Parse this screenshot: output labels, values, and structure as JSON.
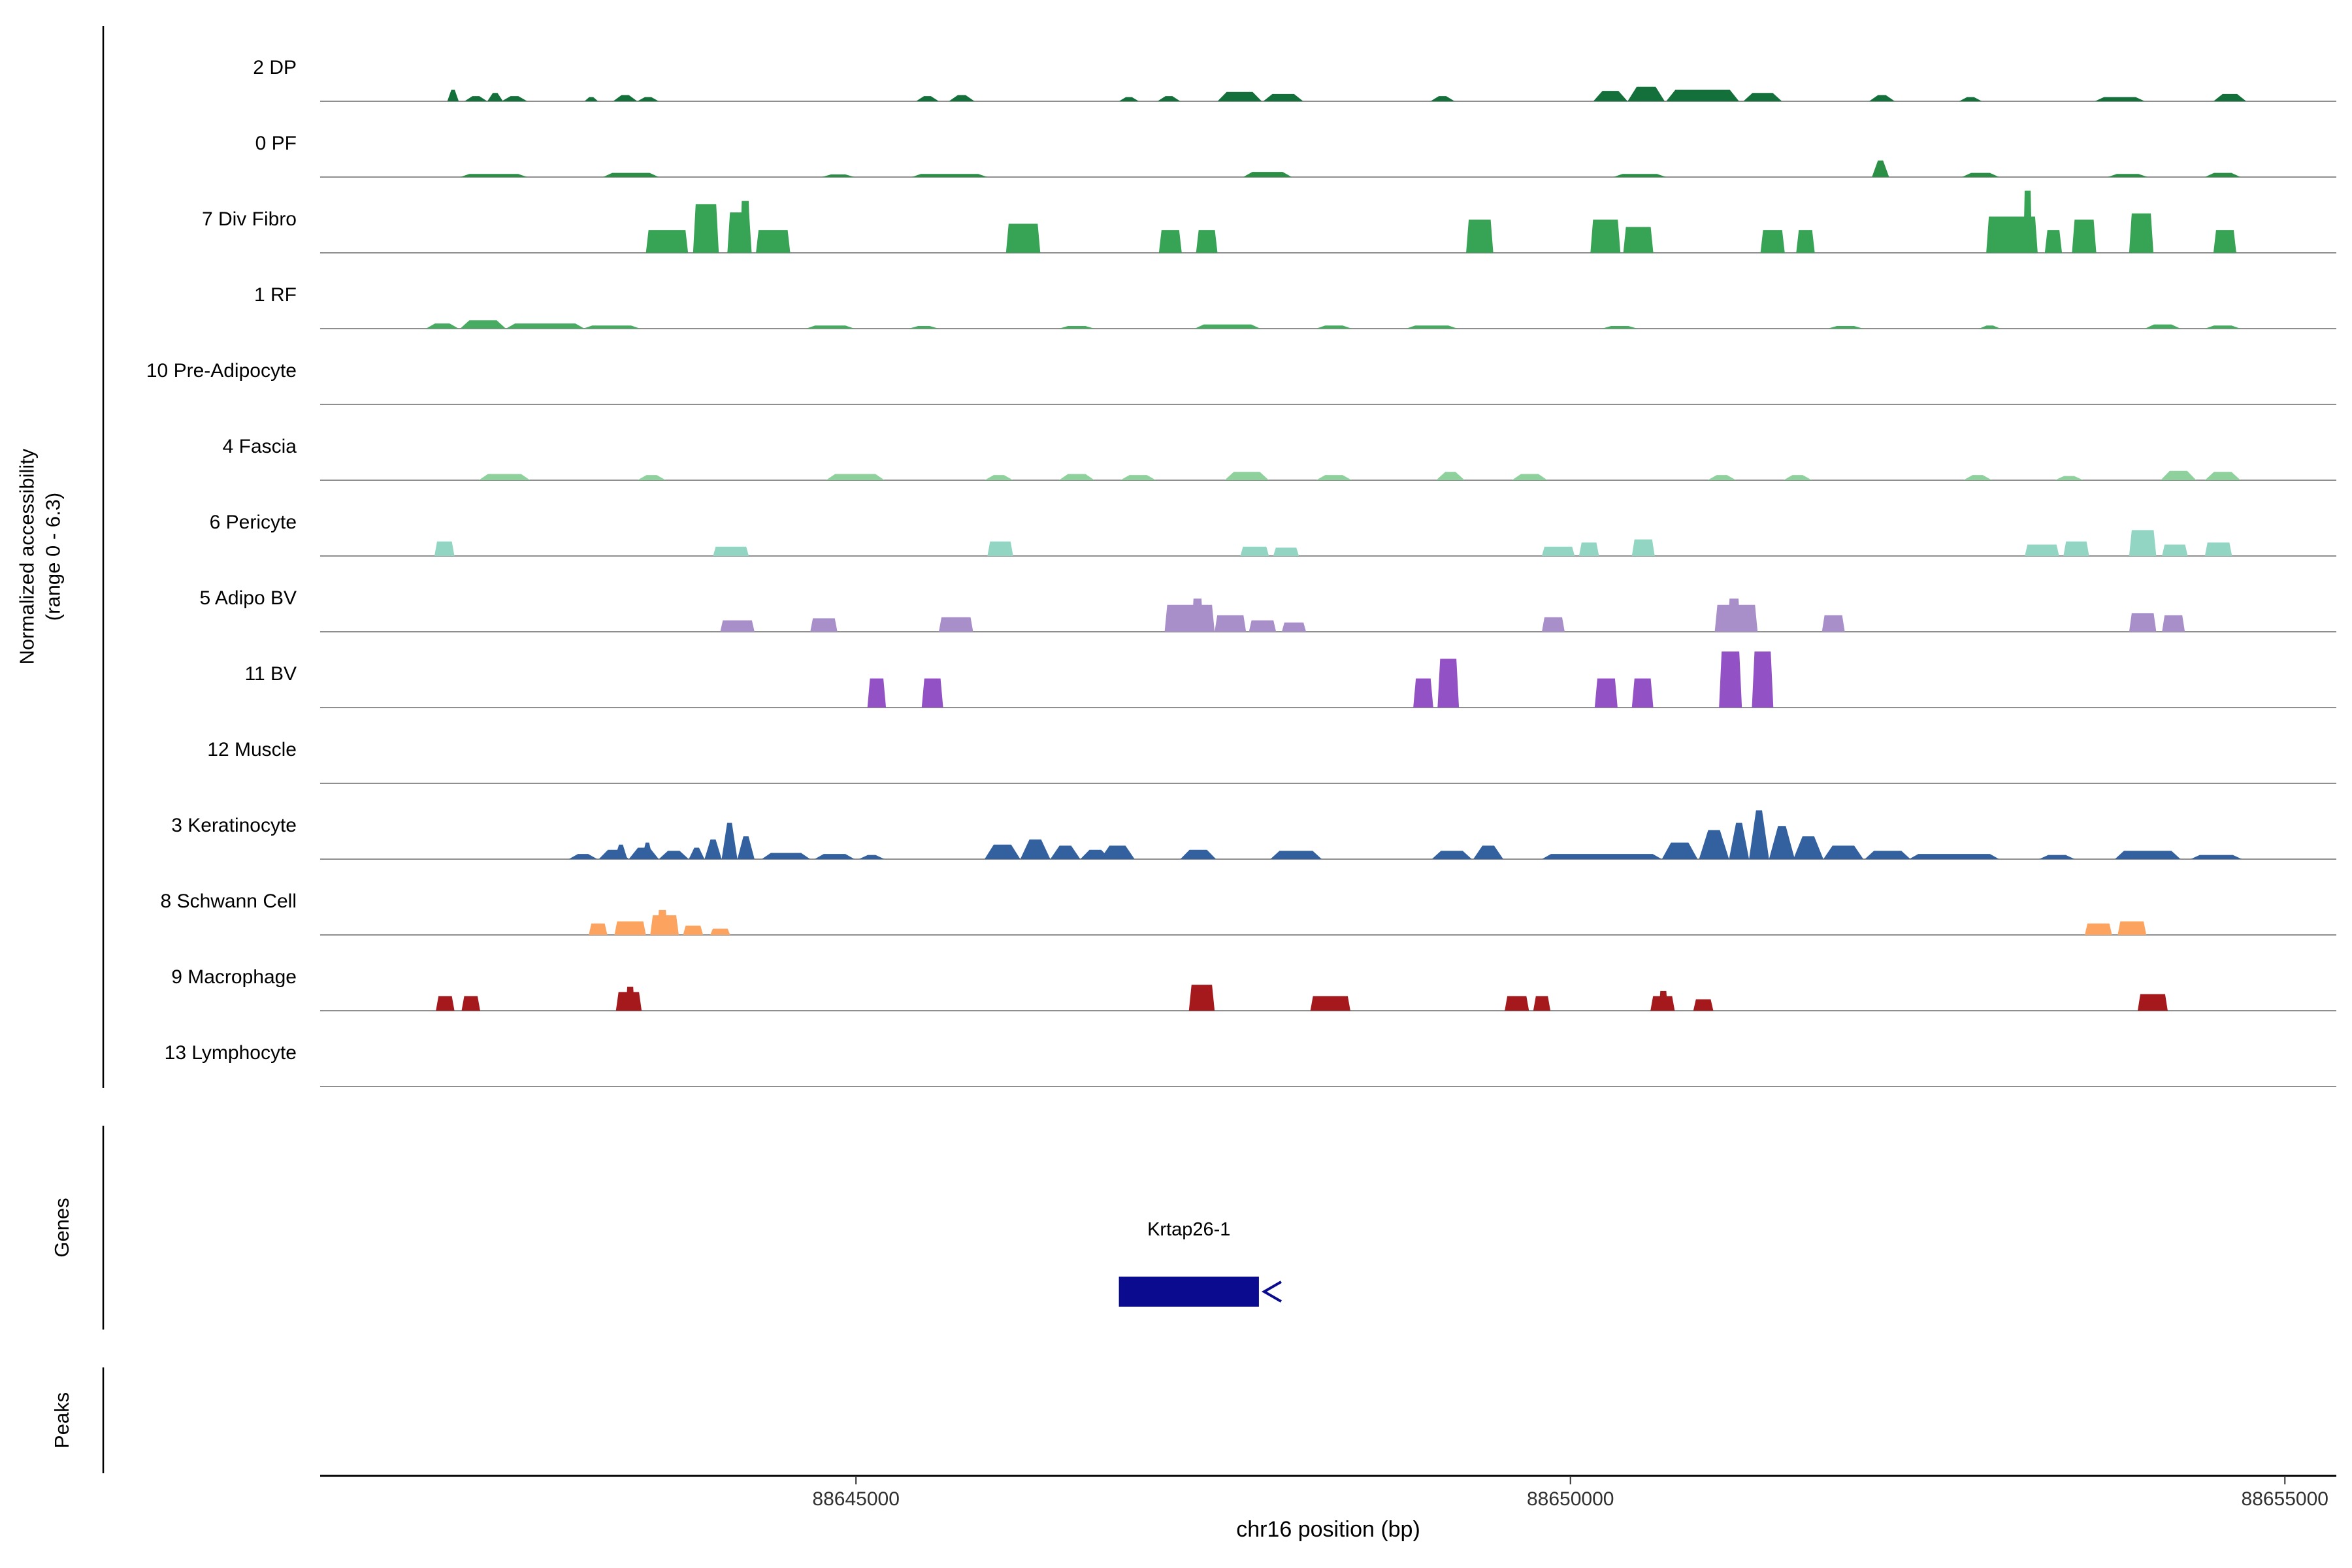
{
  "y_axis": {
    "line1": "Normalized accessibility",
    "line2": "(range 0 - 6.3)"
  },
  "sections": {
    "genes_label": "Genes",
    "peaks_label": "Peaks"
  },
  "x_axis": {
    "title": "chr16 position (bp)",
    "tick_labels": [
      "88645000",
      "88650000",
      "88655000"
    ]
  },
  "chart_data": {
    "type": "area",
    "subtype": "genome-browser-coverage-tracks",
    "chromosome": "chr16",
    "xlabel": "chr16 position (bp)",
    "ylabel": "Normalized accessibility (range 0 - 6.3)",
    "track_y_range": [
      0,
      6.3
    ],
    "xlim": [
      88641250,
      88655360
    ],
    "x_ticks": [
      {
        "value": 88645000,
        "label": "88645000"
      },
      {
        "value": 88650000,
        "label": "88650000"
      },
      {
        "value": 88655000,
        "label": "88655000"
      }
    ],
    "peak_format": [
      "start_bp",
      "width_bp",
      "height_0_to_6.3"
    ],
    "baseline_color": "#8f8f8f",
    "gene_color": "#0b0b8f",
    "tracks": [
      {
        "label": "2 DP",
        "color": "#14703a",
        "shape": "bump",
        "peaks": [
          [
            88642140,
            80,
            1.1
          ],
          [
            88642260,
            160,
            0.5
          ],
          [
            88642420,
            110,
            0.8
          ],
          [
            88642520,
            180,
            0.5
          ],
          [
            88643100,
            95,
            0.4
          ],
          [
            88643300,
            170,
            0.6
          ],
          [
            88643470,
            150,
            0.4
          ],
          [
            88645420,
            160,
            0.5
          ],
          [
            88645650,
            180,
            0.6
          ],
          [
            88646840,
            140,
            0.4
          ],
          [
            88647110,
            160,
            0.5
          ],
          [
            88647530,
            310,
            0.9
          ],
          [
            88647850,
            280,
            0.7
          ],
          [
            88649020,
            170,
            0.5
          ],
          [
            88650160,
            240,
            1.0
          ],
          [
            88650400,
            260,
            1.4
          ],
          [
            88650670,
            510,
            1.1
          ],
          [
            88651210,
            270,
            0.8
          ],
          [
            88652090,
            180,
            0.6
          ],
          [
            88652720,
            160,
            0.4
          ],
          [
            88653670,
            350,
            0.4
          ],
          [
            88654500,
            230,
            0.7
          ]
        ]
      },
      {
        "label": "0 PF",
        "color": "#2c8f46",
        "shape": "bump",
        "peaks": [
          [
            88642230,
            470,
            0.3
          ],
          [
            88643230,
            390,
            0.4
          ],
          [
            88644760,
            230,
            0.25
          ],
          [
            88645390,
            530,
            0.3
          ],
          [
            88647710,
            340,
            0.5
          ],
          [
            88650300,
            370,
            0.3
          ],
          [
            88652110,
            120,
            1.6
          ],
          [
            88652740,
            260,
            0.4
          ],
          [
            88653760,
            280,
            0.3
          ],
          [
            88654440,
            250,
            0.4
          ]
        ]
      },
      {
        "label": "7 Div Fibro",
        "color": "#36a355",
        "shape": "block",
        "peaks": [
          [
            88643530,
            295,
            2.2
          ],
          [
            88643860,
            180,
            4.7
          ],
          [
            88644100,
            170,
            3.9
          ],
          [
            88644190,
            70,
            5.0
          ],
          [
            88644300,
            240,
            2.2
          ],
          [
            88646050,
            240,
            2.8
          ],
          [
            88647120,
            160,
            2.2
          ],
          [
            88647380,
            150,
            2.2
          ],
          [
            88649270,
            190,
            3.2
          ],
          [
            88650140,
            210,
            3.2
          ],
          [
            88650370,
            210,
            2.5
          ],
          [
            88651330,
            170,
            2.2
          ],
          [
            88651580,
            130,
            2.2
          ],
          [
            88652910,
            360,
            3.5
          ],
          [
            88653170,
            60,
            6.0
          ],
          [
            88653320,
            120,
            2.2
          ],
          [
            88653510,
            170,
            3.2
          ],
          [
            88653910,
            170,
            3.8
          ],
          [
            88654500,
            160,
            2.2
          ]
        ]
      },
      {
        "label": "1 RF",
        "color": "#47ac62",
        "shape": "bump",
        "peaks": [
          [
            88641990,
            230,
            0.5
          ],
          [
            88642230,
            320,
            0.8
          ],
          [
            88642550,
            550,
            0.5
          ],
          [
            88643090,
            400,
            0.3
          ],
          [
            88644650,
            340,
            0.3
          ],
          [
            88645370,
            210,
            0.25
          ],
          [
            88646420,
            250,
            0.25
          ],
          [
            88647370,
            460,
            0.4
          ],
          [
            88648220,
            250,
            0.3
          ],
          [
            88648850,
            360,
            0.3
          ],
          [
            88650220,
            250,
            0.25
          ],
          [
            88651800,
            250,
            0.25
          ],
          [
            88652860,
            150,
            0.3
          ],
          [
            88654020,
            250,
            0.4
          ],
          [
            88654440,
            250,
            0.3
          ]
        ]
      },
      {
        "label": "10 Pre-Adipocyte",
        "color": "#66bd7e",
        "shape": "bump",
        "peaks": []
      },
      {
        "label": "4 Fascia",
        "color": "#8fd19d",
        "shape": "bump",
        "peaks": [
          [
            88642360,
            360,
            0.6
          ],
          [
            88643470,
            200,
            0.5
          ],
          [
            88644790,
            410,
            0.6
          ],
          [
            88645900,
            200,
            0.5
          ],
          [
            88646420,
            250,
            0.6
          ],
          [
            88646850,
            250,
            0.5
          ],
          [
            88647580,
            310,
            0.8
          ],
          [
            88648220,
            250,
            0.5
          ],
          [
            88649060,
            200,
            0.8
          ],
          [
            88649590,
            250,
            0.6
          ],
          [
            88650960,
            200,
            0.5
          ],
          [
            88651490,
            200,
            0.5
          ],
          [
            88652750,
            200,
            0.5
          ],
          [
            88653390,
            200,
            0.4
          ],
          [
            88654130,
            250,
            0.9
          ],
          [
            88654440,
            250,
            0.8
          ]
        ]
      },
      {
        "label": "6 Pericyte",
        "color": "#92d5c3",
        "shape": "block",
        "peaks": [
          [
            88642050,
            140,
            1.4
          ],
          [
            88644000,
            250,
            0.9
          ],
          [
            88645920,
            180,
            1.4
          ],
          [
            88647690,
            200,
            0.9
          ],
          [
            88647920,
            180,
            0.8
          ],
          [
            88649800,
            230,
            0.9
          ],
          [
            88650060,
            140,
            1.3
          ],
          [
            88650430,
            160,
            1.6
          ],
          [
            88653180,
            240,
            1.1
          ],
          [
            88653450,
            180,
            1.4
          ],
          [
            88653910,
            190,
            2.5
          ],
          [
            88654140,
            180,
            1.1
          ],
          [
            88654440,
            190,
            1.3
          ]
        ]
      },
      {
        "label": "5 Adipo BV",
        "color": "#a88fc9",
        "shape": "block",
        "peaks": [
          [
            88644050,
            240,
            1.1
          ],
          [
            88644680,
            190,
            1.3
          ],
          [
            88645580,
            240,
            1.4
          ],
          [
            88647160,
            350,
            2.6
          ],
          [
            88647350,
            80,
            3.2
          ],
          [
            88647510,
            220,
            1.6
          ],
          [
            88647750,
            190,
            1.1
          ],
          [
            88647980,
            170,
            0.9
          ],
          [
            88649800,
            160,
            1.4
          ],
          [
            88651010,
            300,
            2.6
          ],
          [
            88651100,
            90,
            3.2
          ],
          [
            88651760,
            160,
            1.6
          ],
          [
            88653910,
            190,
            1.8
          ],
          [
            88654140,
            160,
            1.6
          ]
        ]
      },
      {
        "label": "11 BV",
        "color": "#9351c6",
        "shape": "block",
        "peaks": [
          [
            88645080,
            130,
            2.8
          ],
          [
            88645460,
            150,
            2.8
          ],
          [
            88648900,
            140,
            2.8
          ],
          [
            88649070,
            150,
            4.7
          ],
          [
            88650170,
            160,
            2.8
          ],
          [
            88650430,
            150,
            2.8
          ],
          [
            88651040,
            160,
            5.4
          ],
          [
            88651270,
            150,
            5.4
          ]
        ]
      },
      {
        "label": "12 Muscle",
        "color": "#6b2fa8",
        "shape": "block",
        "peaks": []
      },
      {
        "label": "3 Keratinocyte",
        "color": "#33609f",
        "shape": "bump",
        "peaks": [
          [
            88642990,
            200,
            0.5
          ],
          [
            88643200,
            210,
            0.9
          ],
          [
            88643310,
            90,
            1.4
          ],
          [
            88643410,
            210,
            1.1
          ],
          [
            88643500,
            80,
            1.6
          ],
          [
            88643620,
            210,
            0.8
          ],
          [
            88643830,
            110,
            1.1
          ],
          [
            88643940,
            120,
            1.9
          ],
          [
            88644060,
            110,
            3.5
          ],
          [
            88644170,
            120,
            2.2
          ],
          [
            88644340,
            340,
            0.6
          ],
          [
            88644710,
            280,
            0.5
          ],
          [
            88645020,
            180,
            0.4
          ],
          [
            88645900,
            250,
            1.4
          ],
          [
            88646150,
            210,
            1.9
          ],
          [
            88646360,
            210,
            1.3
          ],
          [
            88646570,
            210,
            0.9
          ],
          [
            88646710,
            240,
            1.3
          ],
          [
            88647270,
            250,
            0.9
          ],
          [
            88647900,
            360,
            0.8
          ],
          [
            88649030,
            280,
            0.8
          ],
          [
            88649320,
            210,
            1.3
          ],
          [
            88649800,
            840,
            0.5
          ],
          [
            88650640,
            250,
            1.6
          ],
          [
            88650900,
            210,
            2.8
          ],
          [
            88651110,
            140,
            3.5
          ],
          [
            88651250,
            140,
            4.7
          ],
          [
            88651390,
            180,
            3.2
          ],
          [
            88651560,
            210,
            2.2
          ],
          [
            88651770,
            280,
            1.3
          ],
          [
            88652060,
            320,
            0.8
          ],
          [
            88652370,
            630,
            0.5
          ],
          [
            88653280,
            250,
            0.4
          ],
          [
            88653810,
            460,
            0.8
          ],
          [
            88654340,
            360,
            0.4
          ]
        ]
      },
      {
        "label": "8 Schwann Cell",
        "color": "#fba35f",
        "shape": "block",
        "peaks": [
          [
            88643130,
            130,
            1.1
          ],
          [
            88643310,
            220,
            1.3
          ],
          [
            88643560,
            200,
            1.9
          ],
          [
            88643610,
            70,
            2.4
          ],
          [
            88643790,
            140,
            0.9
          ],
          [
            88643980,
            140,
            0.6
          ],
          [
            88653600,
            190,
            1.1
          ],
          [
            88653830,
            200,
            1.3
          ]
        ]
      },
      {
        "label": "9 Macrophage",
        "color": "#a5181c",
        "shape": "block",
        "peaks": [
          [
            88642060,
            130,
            1.4
          ],
          [
            88642240,
            130,
            1.4
          ],
          [
            88643320,
            180,
            1.8
          ],
          [
            88643390,
            60,
            2.3
          ],
          [
            88647330,
            180,
            2.5
          ],
          [
            88648180,
            280,
            1.4
          ],
          [
            88649540,
            170,
            1.4
          ],
          [
            88649740,
            120,
            1.4
          ],
          [
            88650560,
            170,
            1.4
          ],
          [
            88650620,
            60,
            1.9
          ],
          [
            88650860,
            140,
            1.1
          ],
          [
            88653970,
            210,
            1.6
          ]
        ]
      },
      {
        "label": "13 Lymphocyte",
        "color": "#801012",
        "shape": "block",
        "peaks": []
      }
    ],
    "genes": [
      {
        "name": "Krtap26-1",
        "start": 88646840,
        "end": 88647820,
        "strand": "-"
      }
    ],
    "peaks_track": []
  }
}
